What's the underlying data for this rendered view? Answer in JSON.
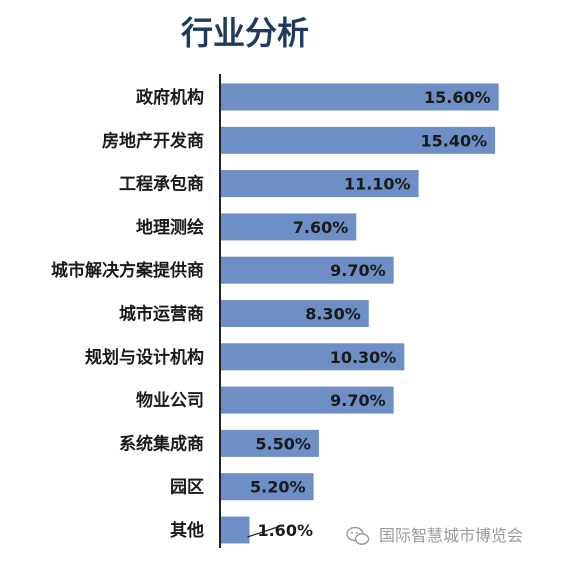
{
  "chart_data": {
    "type": "bar",
    "orientation": "horizontal",
    "title": "行业分析",
    "categories": [
      "政府机构",
      "房地产开发商",
      "工程承包商",
      "地理测绘",
      "城市解决方案提供商",
      "城市运营商",
      "规划与设计机构",
      "物业公司",
      "系统集成商",
      "园区",
      "其他"
    ],
    "values": [
      15.6,
      15.4,
      11.1,
      7.6,
      9.7,
      8.3,
      10.3,
      9.7,
      5.5,
      5.2,
      1.6
    ],
    "value_labels": [
      "15.60%",
      "15.40%",
      "11.10%",
      "7.60%",
      "9.70%",
      "8.30%",
      "10.30%",
      "9.70%",
      "5.50%",
      "5.20%",
      "1.60%"
    ],
    "xlim": [
      0,
      16
    ],
    "grid": false,
    "bar_color": "#6d8fc5"
  },
  "watermark": {
    "text": "国际智慧城市博览会",
    "icon": "wechat-icon"
  }
}
